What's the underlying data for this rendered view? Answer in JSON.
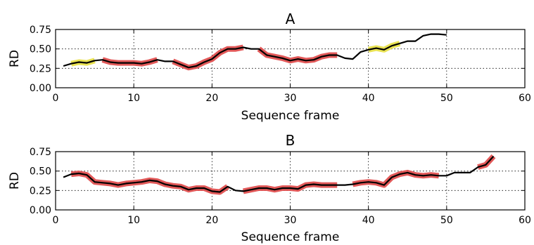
{
  "chart_data": [
    {
      "type": "line",
      "title": "A",
      "xlabel": "Sequence frame",
      "ylabel": "RD",
      "xlim": [
        0,
        60
      ],
      "ylim": [
        0,
        0.75
      ],
      "xticks": [
        "0",
        "10",
        "20",
        "30",
        "40",
        "50",
        "60"
      ],
      "yticks": [
        "0.00",
        "0.25",
        "0.50",
        "0.75"
      ],
      "grid": true,
      "series": [
        {
          "color": "#000000",
          "x": [
            1,
            2,
            3,
            4,
            5,
            6,
            7,
            8,
            9,
            10,
            11,
            12,
            13,
            14,
            15,
            16,
            17,
            18,
            19,
            20,
            21,
            22,
            23,
            24,
            25,
            26,
            27,
            28,
            29,
            30,
            31,
            32,
            33,
            34,
            35,
            36,
            37,
            38,
            39,
            40,
            41,
            42,
            43,
            44,
            45,
            46,
            47,
            48,
            49,
            50
          ],
          "y": [
            0.28,
            0.31,
            0.33,
            0.32,
            0.35,
            0.36,
            0.33,
            0.32,
            0.32,
            0.32,
            0.31,
            0.33,
            0.36,
            0.34,
            0.34,
            0.3,
            0.26,
            0.28,
            0.33,
            0.37,
            0.45,
            0.5,
            0.5,
            0.52,
            0.5,
            0.5,
            0.42,
            0.4,
            0.38,
            0.35,
            0.37,
            0.35,
            0.36,
            0.4,
            0.42,
            0.42,
            0.38,
            0.37,
            0.46,
            0.49,
            0.51,
            0.49,
            0.54,
            0.57,
            0.6,
            0.6,
            0.67,
            0.69,
            0.69,
            0.68
          ]
        }
      ],
      "highlights": [
        {
          "color": "#e8e04a",
          "x": [
            2,
            3,
            4,
            5
          ]
        },
        {
          "color": "#e05050",
          "x": [
            6,
            7,
            8,
            9,
            10,
            11,
            12,
            13
          ]
        },
        {
          "color": "#e05050",
          "x": [
            15,
            16,
            17,
            18,
            19,
            20,
            21,
            22,
            23,
            24
          ]
        },
        {
          "color": "#e05050",
          "x": [
            26,
            27,
            28,
            29,
            30,
            31,
            32,
            33,
            34,
            35,
            36
          ]
        },
        {
          "color": "#e8e04a",
          "x": [
            40,
            41,
            42,
            43,
            44
          ]
        }
      ]
    },
    {
      "type": "line",
      "title": "B",
      "xlabel": "Sequence frame",
      "ylabel": "RD",
      "xlim": [
        0,
        60
      ],
      "ylim": [
        0,
        0.75
      ],
      "xticks": [
        "0",
        "10",
        "20",
        "30",
        "40",
        "50",
        "60"
      ],
      "yticks": [
        "0.00",
        "0.25",
        "0.50",
        "0.75"
      ],
      "grid": true,
      "series": [
        {
          "color": "#000000",
          "x": [
            1,
            2,
            3,
            4,
            5,
            6,
            7,
            8,
            9,
            10,
            11,
            12,
            13,
            14,
            15,
            16,
            17,
            18,
            19,
            20,
            21,
            22,
            23,
            24,
            25,
            26,
            27,
            28,
            29,
            30,
            31,
            32,
            33,
            34,
            35,
            36,
            37,
            38,
            39,
            40,
            41,
            42,
            43,
            44,
            45,
            46,
            47,
            48,
            49,
            50,
            51,
            52,
            53,
            54,
            55,
            56
          ],
          "y": [
            0.42,
            0.46,
            0.47,
            0.45,
            0.36,
            0.35,
            0.34,
            0.32,
            0.34,
            0.35,
            0.36,
            0.38,
            0.37,
            0.33,
            0.31,
            0.3,
            0.26,
            0.28,
            0.28,
            0.24,
            0.23,
            0.3,
            0.25,
            0.24,
            0.26,
            0.28,
            0.28,
            0.26,
            0.28,
            0.28,
            0.27,
            0.32,
            0.33,
            0.32,
            0.32,
            0.32,
            0.32,
            0.33,
            0.35,
            0.36,
            0.35,
            0.32,
            0.42,
            0.46,
            0.48,
            0.45,
            0.44,
            0.45,
            0.44,
            0.44,
            0.48,
            0.48,
            0.48,
            0.55,
            0.58,
            0.69
          ]
        }
      ],
      "highlights": [
        {
          "color": "#e05050",
          "x": [
            2,
            3,
            4,
            5,
            6,
            7,
            8,
            9,
            10,
            11,
            12,
            13,
            14,
            15,
            16,
            17,
            18,
            19,
            20,
            21,
            22
          ]
        },
        {
          "color": "#e05050",
          "x": [
            24,
            25,
            26,
            27,
            28,
            29,
            30,
            31,
            32,
            33,
            34,
            35,
            36
          ]
        },
        {
          "color": "#e05050",
          "x": [
            38,
            39,
            40,
            41,
            42,
            43,
            44,
            45,
            46,
            47,
            48,
            49
          ]
        },
        {
          "color": "#e05050",
          "x": [
            54,
            55,
            56
          ]
        }
      ]
    }
  ]
}
